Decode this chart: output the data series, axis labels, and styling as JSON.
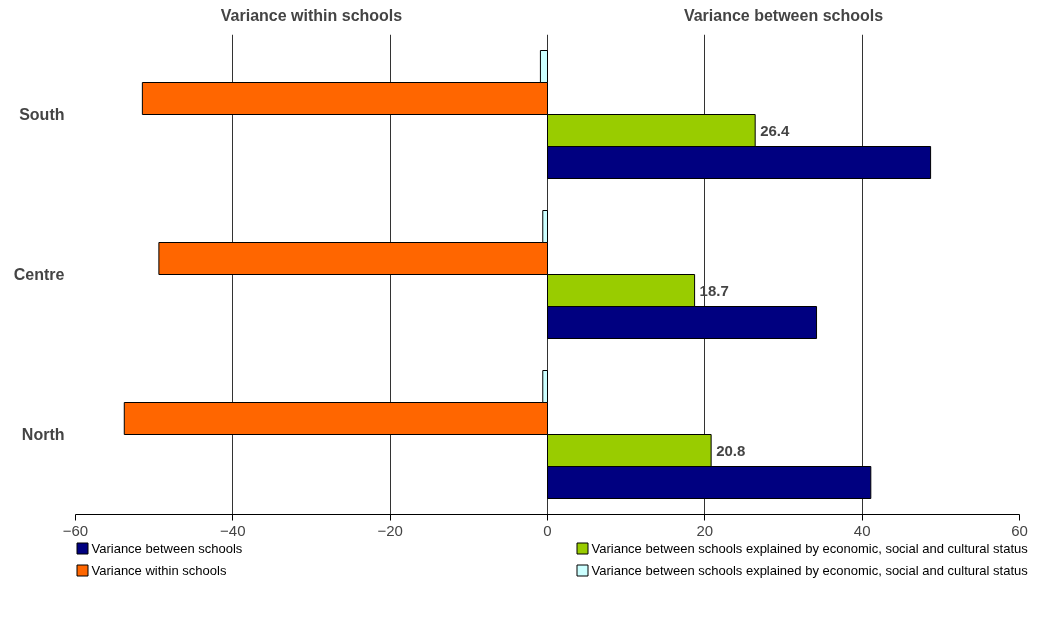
{
  "chart_data": {
    "type": "bar",
    "orientation": "horizontal",
    "categories": [
      "South",
      "Centre",
      "North"
    ],
    "series": [
      {
        "name": "Variance between schools",
        "color": "#000080",
        "values": [
          48.7,
          34.2,
          41.1
        ]
      },
      {
        "name": "Variance between schools explained by economic, social and cultural status",
        "color": "#99cc00",
        "values": [
          26.4,
          18.7,
          20.8
        ],
        "value_labels": [
          "26.4",
          "18.7",
          "20.8"
        ]
      },
      {
        "name": "Variance within schools",
        "color": "#ff6600",
        "values": [
          -51.5,
          -49.4,
          -53.8
        ]
      },
      {
        "name": "Variance between schools explained by economic, social and cultural status",
        "color": "#ccffff",
        "values": [
          -0.9,
          -0.6,
          -0.6
        ]
      }
    ],
    "annotations": [
      "Variance within schools",
      "Variance between schools"
    ],
    "xlim": [
      -60,
      60
    ],
    "xticks": [
      -60,
      -40,
      -20,
      0,
      20,
      40,
      60
    ],
    "grid": "x",
    "legend": "bottom"
  }
}
